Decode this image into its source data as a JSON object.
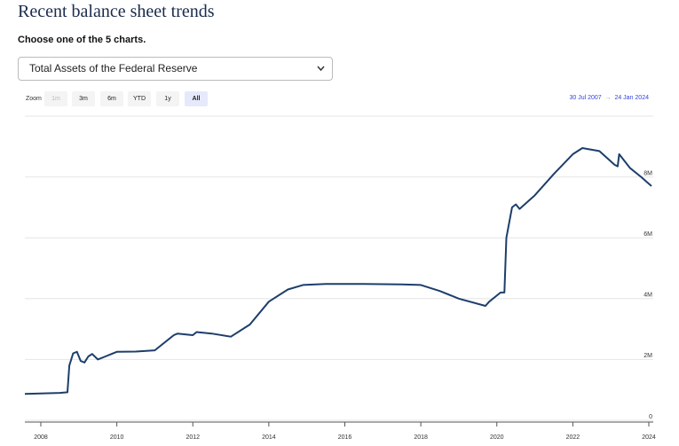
{
  "header": {
    "title": "Recent balance sheet trends",
    "prompt": "Choose one of the 5 charts."
  },
  "selector": {
    "selected": "Total Assets of the Federal Reserve"
  },
  "zoom": {
    "label": "Zoom",
    "buttons": [
      "1m",
      "3m",
      "6m",
      "YTD",
      "1y",
      "All"
    ],
    "active": "All"
  },
  "range": {
    "from": "30 Jul 2007",
    "arrow": "→",
    "to": "24 Jan 2024"
  },
  "chart_data": {
    "type": "line",
    "color": "#1d3e6b",
    "x": [
      2007.58,
      2008.5,
      2008.7,
      2008.75,
      2008.85,
      2008.95,
      2009.05,
      2009.15,
      2009.25,
      2009.35,
      2009.5,
      2009.7,
      2010.0,
      2010.5,
      2011.0,
      2011.5,
      2011.6,
      2012.0,
      2012.1,
      2012.5,
      2013.0,
      2013.5,
      2014.0,
      2014.5,
      2014.9,
      2015.5,
      2016.5,
      2017.5,
      2018.0,
      2018.5,
      2019.0,
      2019.7,
      2019.8,
      2020.1,
      2020.2,
      2020.25,
      2020.4,
      2020.5,
      2020.6,
      2021.0,
      2021.5,
      2022.0,
      2022.25,
      2022.7,
      2023.1,
      2023.18,
      2023.22,
      2023.5,
      2023.8,
      2024.07
    ],
    "values": [
      0.87,
      0.9,
      0.92,
      1.8,
      2.2,
      2.25,
      1.95,
      1.9,
      2.1,
      2.18,
      2.0,
      2.1,
      2.25,
      2.26,
      2.3,
      2.8,
      2.85,
      2.8,
      2.9,
      2.85,
      2.75,
      3.15,
      3.9,
      4.3,
      4.45,
      4.48,
      4.48,
      4.47,
      4.45,
      4.25,
      4.0,
      3.76,
      3.9,
      4.2,
      4.2,
      6.0,
      7.0,
      7.1,
      6.95,
      7.4,
      8.1,
      8.75,
      8.95,
      8.85,
      8.4,
      8.35,
      8.75,
      8.3,
      8.0,
      7.7
    ],
    "xlim": [
      2007.58,
      2024.07
    ],
    "xticks": [
      2008,
      2010,
      2012,
      2014,
      2016,
      2018,
      2020,
      2022,
      2024
    ],
    "ylim": [
      0,
      10
    ],
    "yticks": [
      0,
      {
        "value": 2,
        "label": "2M"
      },
      {
        "value": 4,
        "label": "4M"
      },
      {
        "value": 6,
        "label": "6M"
      },
      {
        "value": 8,
        "label": "8M"
      }
    ],
    "grid": true
  }
}
